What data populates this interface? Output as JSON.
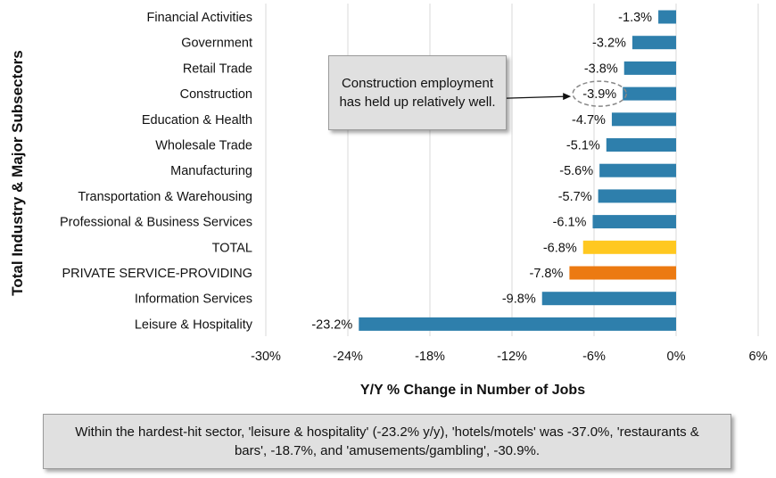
{
  "chart_data": {
    "type": "bar",
    "orientation": "horizontal",
    "ylabel": "Total Industry & Major Subsectors",
    "xlabel": "Y/Y % Change in Number of Jobs",
    "xlim": [
      -30,
      6
    ],
    "xticks": [
      -30,
      -24,
      -18,
      -12,
      -6,
      0,
      6
    ],
    "xtick_labels": [
      "-30%",
      "-24%",
      "-18%",
      "-12%",
      "-6%",
      "0%",
      "6%"
    ],
    "grid": "vertical",
    "categories": [
      "Financial Activities",
      "Government",
      "Retail Trade",
      "Construction",
      "Education & Health",
      "Wholesale Trade",
      "Manufacturing",
      "Transportation & Warehousing",
      "Professional & Business Services",
      "TOTAL",
      "PRIVATE SERVICE-PROVIDING",
      "Information Services",
      "Leisure & Hospitality"
    ],
    "values": [
      -1.3,
      -3.2,
      -3.8,
      -3.9,
      -4.7,
      -5.1,
      -5.6,
      -5.7,
      -6.1,
      -6.8,
      -7.8,
      -9.8,
      -23.2
    ],
    "value_labels": [
      "-1.3%",
      "-3.2%",
      "-3.8%",
      "-3.9%",
      "-4.7%",
      "-5.1%",
      "-5.6%",
      "-5.7%",
      "-6.1%",
      "-6.8%",
      "-7.8%",
      "-9.8%",
      "-23.2%"
    ],
    "bar_colors": [
      "#2e7fac",
      "#2e7fac",
      "#2e7fac",
      "#2e7fac",
      "#2e7fac",
      "#2e7fac",
      "#2e7fac",
      "#2e7fac",
      "#2e7fac",
      "#ffc820",
      "#ec7a12",
      "#2e7fac",
      "#2e7fac"
    ],
    "highlighted_category": "Construction"
  },
  "callout": {
    "text": "Construction employment has held up relatively well."
  },
  "note": {
    "text": "Within the hardest-hit sector, 'leisure & hospitality' (-23.2% y/y), 'hotels/motels' was -37.0%, 'restaurants & bars', -18.7%, and 'amusements/gambling', -30.9%."
  }
}
